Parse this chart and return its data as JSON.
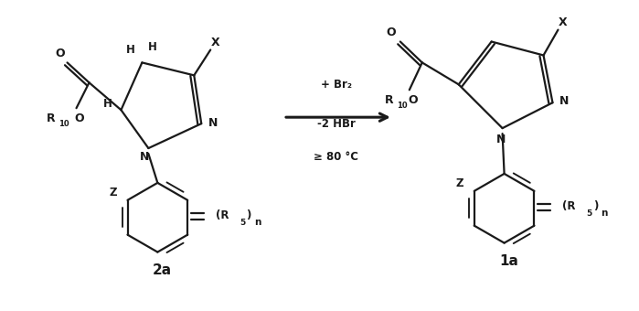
{
  "background_color": "#ffffff",
  "line_color": "#1a1a1a",
  "line_width": 1.6,
  "fig_width": 6.99,
  "fig_height": 3.4,
  "label_2a": "2a",
  "label_1a": "1a",
  "arrow_text_line1": "+ Br₂",
  "arrow_text_line2": "-2 HBr",
  "arrow_text_line3": "≥ 80 °C"
}
